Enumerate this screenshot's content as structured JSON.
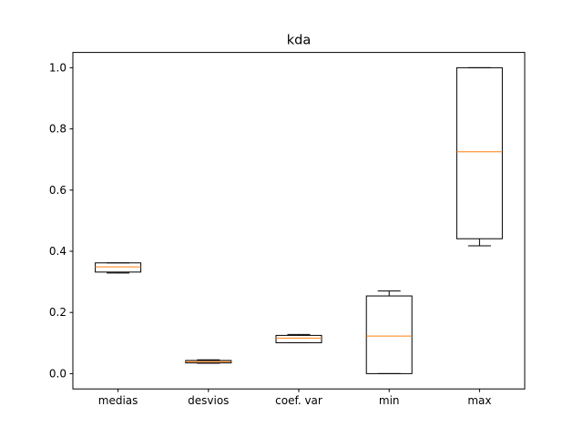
{
  "chart_data": {
    "type": "box",
    "title": "kda",
    "xlabel": "",
    "ylabel": "",
    "ylim": [
      -0.05,
      1.05
    ],
    "yticks": [
      0.0,
      0.2,
      0.4,
      0.6,
      0.8,
      1.0
    ],
    "ytick_labels": [
      "0.0",
      "0.2",
      "0.4",
      "0.6",
      "0.8",
      "1.0"
    ],
    "grid": false,
    "categories": [
      "medias",
      "desvios",
      "coef. var",
      "min",
      "max"
    ],
    "boxes": [
      {
        "label": "medias",
        "whisker_low": 0.329,
        "q1": 0.332,
        "median": 0.349,
        "q3": 0.362,
        "whisker_high": 0.362
      },
      {
        "label": "desvios",
        "whisker_low": 0.034,
        "q1": 0.035,
        "median": 0.039,
        "q3": 0.043,
        "whisker_high": 0.045
      },
      {
        "label": "coef. var",
        "whisker_low": 0.101,
        "q1": 0.101,
        "median": 0.116,
        "q3": 0.125,
        "whisker_high": 0.128
      },
      {
        "label": "min",
        "whisker_low": 0.0,
        "q1": 0.0,
        "median": 0.123,
        "q3": 0.254,
        "whisker_high": 0.27
      },
      {
        "label": "max",
        "whisker_low": 0.418,
        "q1": 0.441,
        "median": 0.725,
        "q3": 1.0,
        "whisker_high": 1.0
      }
    ],
    "colors": {
      "box": "#000000",
      "median": "#ff7f0e",
      "axes": "#000000",
      "background": "#ffffff"
    }
  }
}
